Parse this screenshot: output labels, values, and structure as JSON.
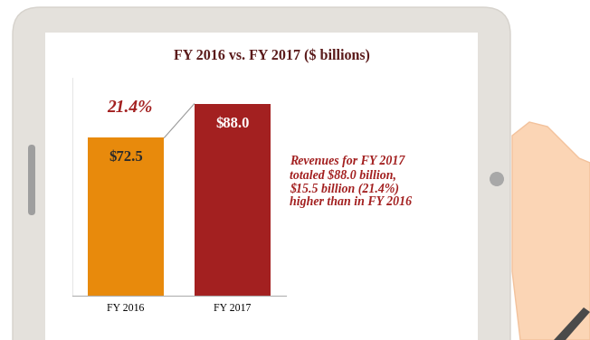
{
  "chart_data": {
    "type": "bar",
    "title": "FY 2016 vs. FY 2017 ($ billions)",
    "categories": [
      "FY 2016",
      "FY 2017"
    ],
    "values": [
      72.5,
      88.0
    ],
    "value_labels": [
      "$72.5",
      "$88.0"
    ],
    "colors": [
      "#E88A0C",
      "#A32020"
    ],
    "ylim": [
      0,
      100
    ],
    "data_labels": true,
    "tick_labels": "x",
    "annotations": [
      "21.4%",
      "Revenues for FY 2017 totaled $88.0 billion, $15.5 billion (21.4%) higher than in FY 2016"
    ]
  }
}
